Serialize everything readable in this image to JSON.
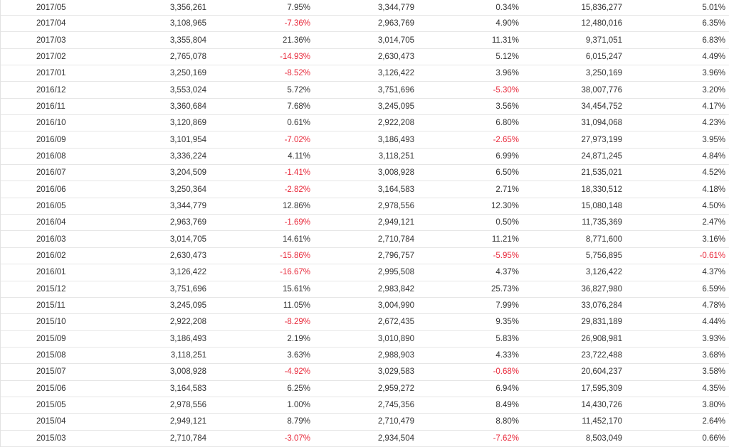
{
  "colors": {
    "text": "#333333",
    "negative": "#e8293b",
    "row_border": "#e6e6e6"
  },
  "rows": [
    [
      "2017/05",
      "3,356,261",
      "7.95%",
      "3,344,779",
      "0.34%",
      "15,836,277",
      "5.01%"
    ],
    [
      "2017/04",
      "3,108,965",
      "-7.36%",
      "2,963,769",
      "4.90%",
      "12,480,016",
      "6.35%"
    ],
    [
      "2017/03",
      "3,355,804",
      "21.36%",
      "3,014,705",
      "11.31%",
      "9,371,051",
      "6.83%"
    ],
    [
      "2017/02",
      "2,765,078",
      "-14.93%",
      "2,630,473",
      "5.12%",
      "6,015,247",
      "4.49%"
    ],
    [
      "2017/01",
      "3,250,169",
      "-8.52%",
      "3,126,422",
      "3.96%",
      "3,250,169",
      "3.96%"
    ],
    [
      "2016/12",
      "3,553,024",
      "5.72%",
      "3,751,696",
      "-5.30%",
      "38,007,776",
      "3.20%"
    ],
    [
      "2016/11",
      "3,360,684",
      "7.68%",
      "3,245,095",
      "3.56%",
      "34,454,752",
      "4.17%"
    ],
    [
      "2016/10",
      "3,120,869",
      "0.61%",
      "2,922,208",
      "6.80%",
      "31,094,068",
      "4.23%"
    ],
    [
      "2016/09",
      "3,101,954",
      "-7.02%",
      "3,186,493",
      "-2.65%",
      "27,973,199",
      "3.95%"
    ],
    [
      "2016/08",
      "3,336,224",
      "4.11%",
      "3,118,251",
      "6.99%",
      "24,871,245",
      "4.84%"
    ],
    [
      "2016/07",
      "3,204,509",
      "-1.41%",
      "3,008,928",
      "6.50%",
      "21,535,021",
      "4.52%"
    ],
    [
      "2016/06",
      "3,250,364",
      "-2.82%",
      "3,164,583",
      "2.71%",
      "18,330,512",
      "4.18%"
    ],
    [
      "2016/05",
      "3,344,779",
      "12.86%",
      "2,978,556",
      "12.30%",
      "15,080,148",
      "4.50%"
    ],
    [
      "2016/04",
      "2,963,769",
      "-1.69%",
      "2,949,121",
      "0.50%",
      "11,735,369",
      "2.47%"
    ],
    [
      "2016/03",
      "3,014,705",
      "14.61%",
      "2,710,784",
      "11.21%",
      "8,771,600",
      "3.16%"
    ],
    [
      "2016/02",
      "2,630,473",
      "-15.86%",
      "2,796,757",
      "-5.95%",
      "5,756,895",
      "-0.61%"
    ],
    [
      "2016/01",
      "3,126,422",
      "-16.67%",
      "2,995,508",
      "4.37%",
      "3,126,422",
      "4.37%"
    ],
    [
      "2015/12",
      "3,751,696",
      "15.61%",
      "2,983,842",
      "25.73%",
      "36,827,980",
      "6.59%"
    ],
    [
      "2015/11",
      "3,245,095",
      "11.05%",
      "3,004,990",
      "7.99%",
      "33,076,284",
      "4.78%"
    ],
    [
      "2015/10",
      "2,922,208",
      "-8.29%",
      "2,672,435",
      "9.35%",
      "29,831,189",
      "4.44%"
    ],
    [
      "2015/09",
      "3,186,493",
      "2.19%",
      "3,010,890",
      "5.83%",
      "26,908,981",
      "3.93%"
    ],
    [
      "2015/08",
      "3,118,251",
      "3.63%",
      "2,988,903",
      "4.33%",
      "23,722,488",
      "3.68%"
    ],
    [
      "2015/07",
      "3,008,928",
      "-4.92%",
      "3,029,583",
      "-0.68%",
      "20,604,237",
      "3.58%"
    ],
    [
      "2015/06",
      "3,164,583",
      "6.25%",
      "2,959,272",
      "6.94%",
      "17,595,309",
      "4.35%"
    ],
    [
      "2015/05",
      "2,978,556",
      "1.00%",
      "2,745,356",
      "8.49%",
      "14,430,726",
      "3.80%"
    ],
    [
      "2015/04",
      "2,949,121",
      "8.79%",
      "2,710,479",
      "8.80%",
      "11,452,170",
      "2.64%"
    ],
    [
      "2015/03",
      "2,710,784",
      "-3.07%",
      "2,934,504",
      "-7.62%",
      "8,503,049",
      "0.66%"
    ]
  ]
}
